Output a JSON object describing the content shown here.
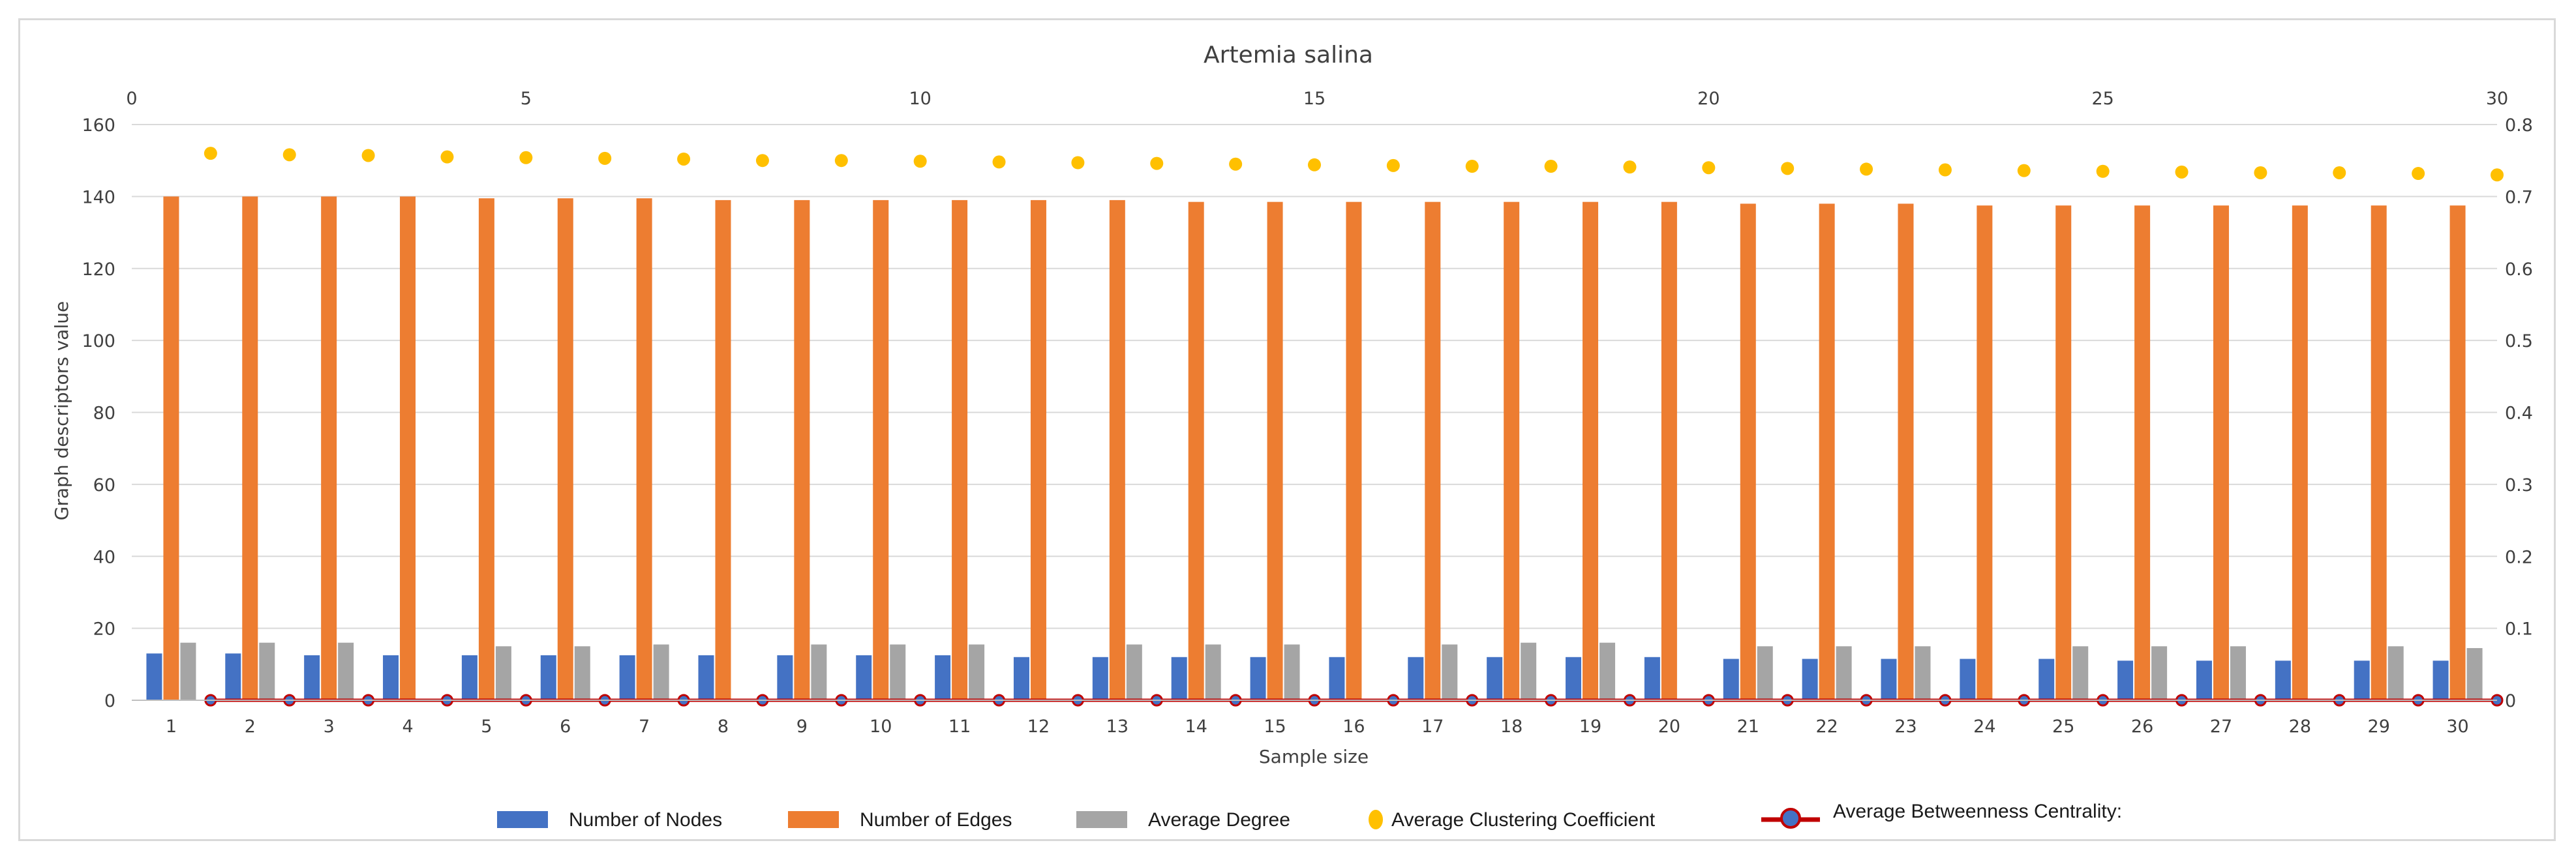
{
  "chart_data": {
    "type": "bar",
    "title": "Artemia salina",
    "xlabel": "Sample size",
    "ylabel": "Graph descriptors value",
    "categories": [
      "1",
      "2",
      "3",
      "4",
      "5",
      "6",
      "7",
      "8",
      "9",
      "10",
      "11",
      "12",
      "13",
      "14",
      "15",
      "16",
      "17",
      "18",
      "19",
      "20",
      "21",
      "22",
      "23",
      "24",
      "25",
      "26",
      "27",
      "28",
      "29",
      "30"
    ],
    "ylim": [
      0,
      160
    ],
    "y_ticks": [
      "0",
      "20",
      "40",
      "60",
      "80",
      "100",
      "120",
      "140",
      "160"
    ],
    "y2lim": [
      0,
      0.8
    ],
    "y2_ticks": [
      "0",
      "0.1",
      "0.2",
      "0.3",
      "0.4",
      "0.5",
      "0.6",
      "0.7",
      "0.8"
    ],
    "x2lim": [
      0,
      30
    ],
    "x2_ticks": [
      "0",
      "5",
      "10",
      "15",
      "20",
      "25",
      "30"
    ],
    "series": [
      {
        "name": "Number of Nodes",
        "kind": "bar",
        "axis": "primary",
        "color": "#4472c4",
        "values": [
          13,
          13,
          12.5,
          12.5,
          12.5,
          12.5,
          12.5,
          12.5,
          12.5,
          12.5,
          12.5,
          12,
          12,
          12,
          12,
          12,
          12,
          12,
          12,
          12,
          11.5,
          11.5,
          11.5,
          11.5,
          11.5,
          11,
          11,
          11,
          11,
          11
        ]
      },
      {
        "name": "Number of Edges",
        "kind": "bar",
        "axis": "primary",
        "color": "#ed7d31",
        "values": [
          140,
          140,
          140,
          140,
          139.5,
          139.5,
          139.5,
          139,
          139,
          139,
          139,
          139,
          139,
          138.5,
          138.5,
          138.5,
          138.5,
          138.5,
          138.5,
          138.5,
          138,
          138,
          138,
          137.5,
          137.5,
          137.5,
          137.5,
          137.5,
          137.5,
          137.5
        ]
      },
      {
        "name": "Average Degree",
        "kind": "bar",
        "axis": "primary",
        "color": "#a5a5a5",
        "values": [
          16,
          16,
          16,
          null,
          15,
          15,
          15.5,
          null,
          15.5,
          15.5,
          15.5,
          null,
          15.5,
          15.5,
          15.5,
          null,
          15.5,
          16,
          16,
          null,
          15,
          15,
          15,
          null,
          15,
          15,
          15,
          null,
          15,
          14.5
        ]
      },
      {
        "name": "Average Clustering Coefficient",
        "kind": "scatter",
        "axis": "secondary",
        "color": "#ffc000",
        "x": [
          1,
          2,
          3,
          4,
          5,
          6,
          7,
          8,
          9,
          10,
          11,
          12,
          13,
          14,
          15,
          16,
          17,
          18,
          19,
          20,
          21,
          22,
          23,
          24,
          25,
          26,
          27,
          28,
          29,
          30
        ],
        "values": [
          0.76,
          0.758,
          0.757,
          0.755,
          0.754,
          0.753,
          0.752,
          0.75,
          0.75,
          0.749,
          0.748,
          0.747,
          0.746,
          0.745,
          0.744,
          0.743,
          0.742,
          0.742,
          0.741,
          0.74,
          0.739,
          0.738,
          0.737,
          0.736,
          0.735,
          0.734,
          0.733,
          0.733,
          0.732,
          0.73
        ]
      },
      {
        "name": "Average Betweenness Centrality:",
        "kind": "line",
        "axis": "secondary",
        "color": "#c00000",
        "marker_fill": "#4472c4",
        "x": [
          1,
          2,
          3,
          4,
          5,
          6,
          7,
          8,
          9,
          10,
          11,
          12,
          13,
          14,
          15,
          16,
          17,
          18,
          19,
          20,
          21,
          22,
          23,
          24,
          25,
          26,
          27,
          28,
          29,
          30
        ],
        "values": [
          0,
          0,
          0,
          0,
          0,
          0,
          0,
          0,
          0,
          0,
          0,
          0,
          0,
          0,
          0,
          0,
          0,
          0,
          0,
          0,
          0,
          0,
          0,
          0,
          0,
          0,
          0,
          0,
          0,
          0
        ]
      }
    ],
    "legend_position": "bottom"
  }
}
